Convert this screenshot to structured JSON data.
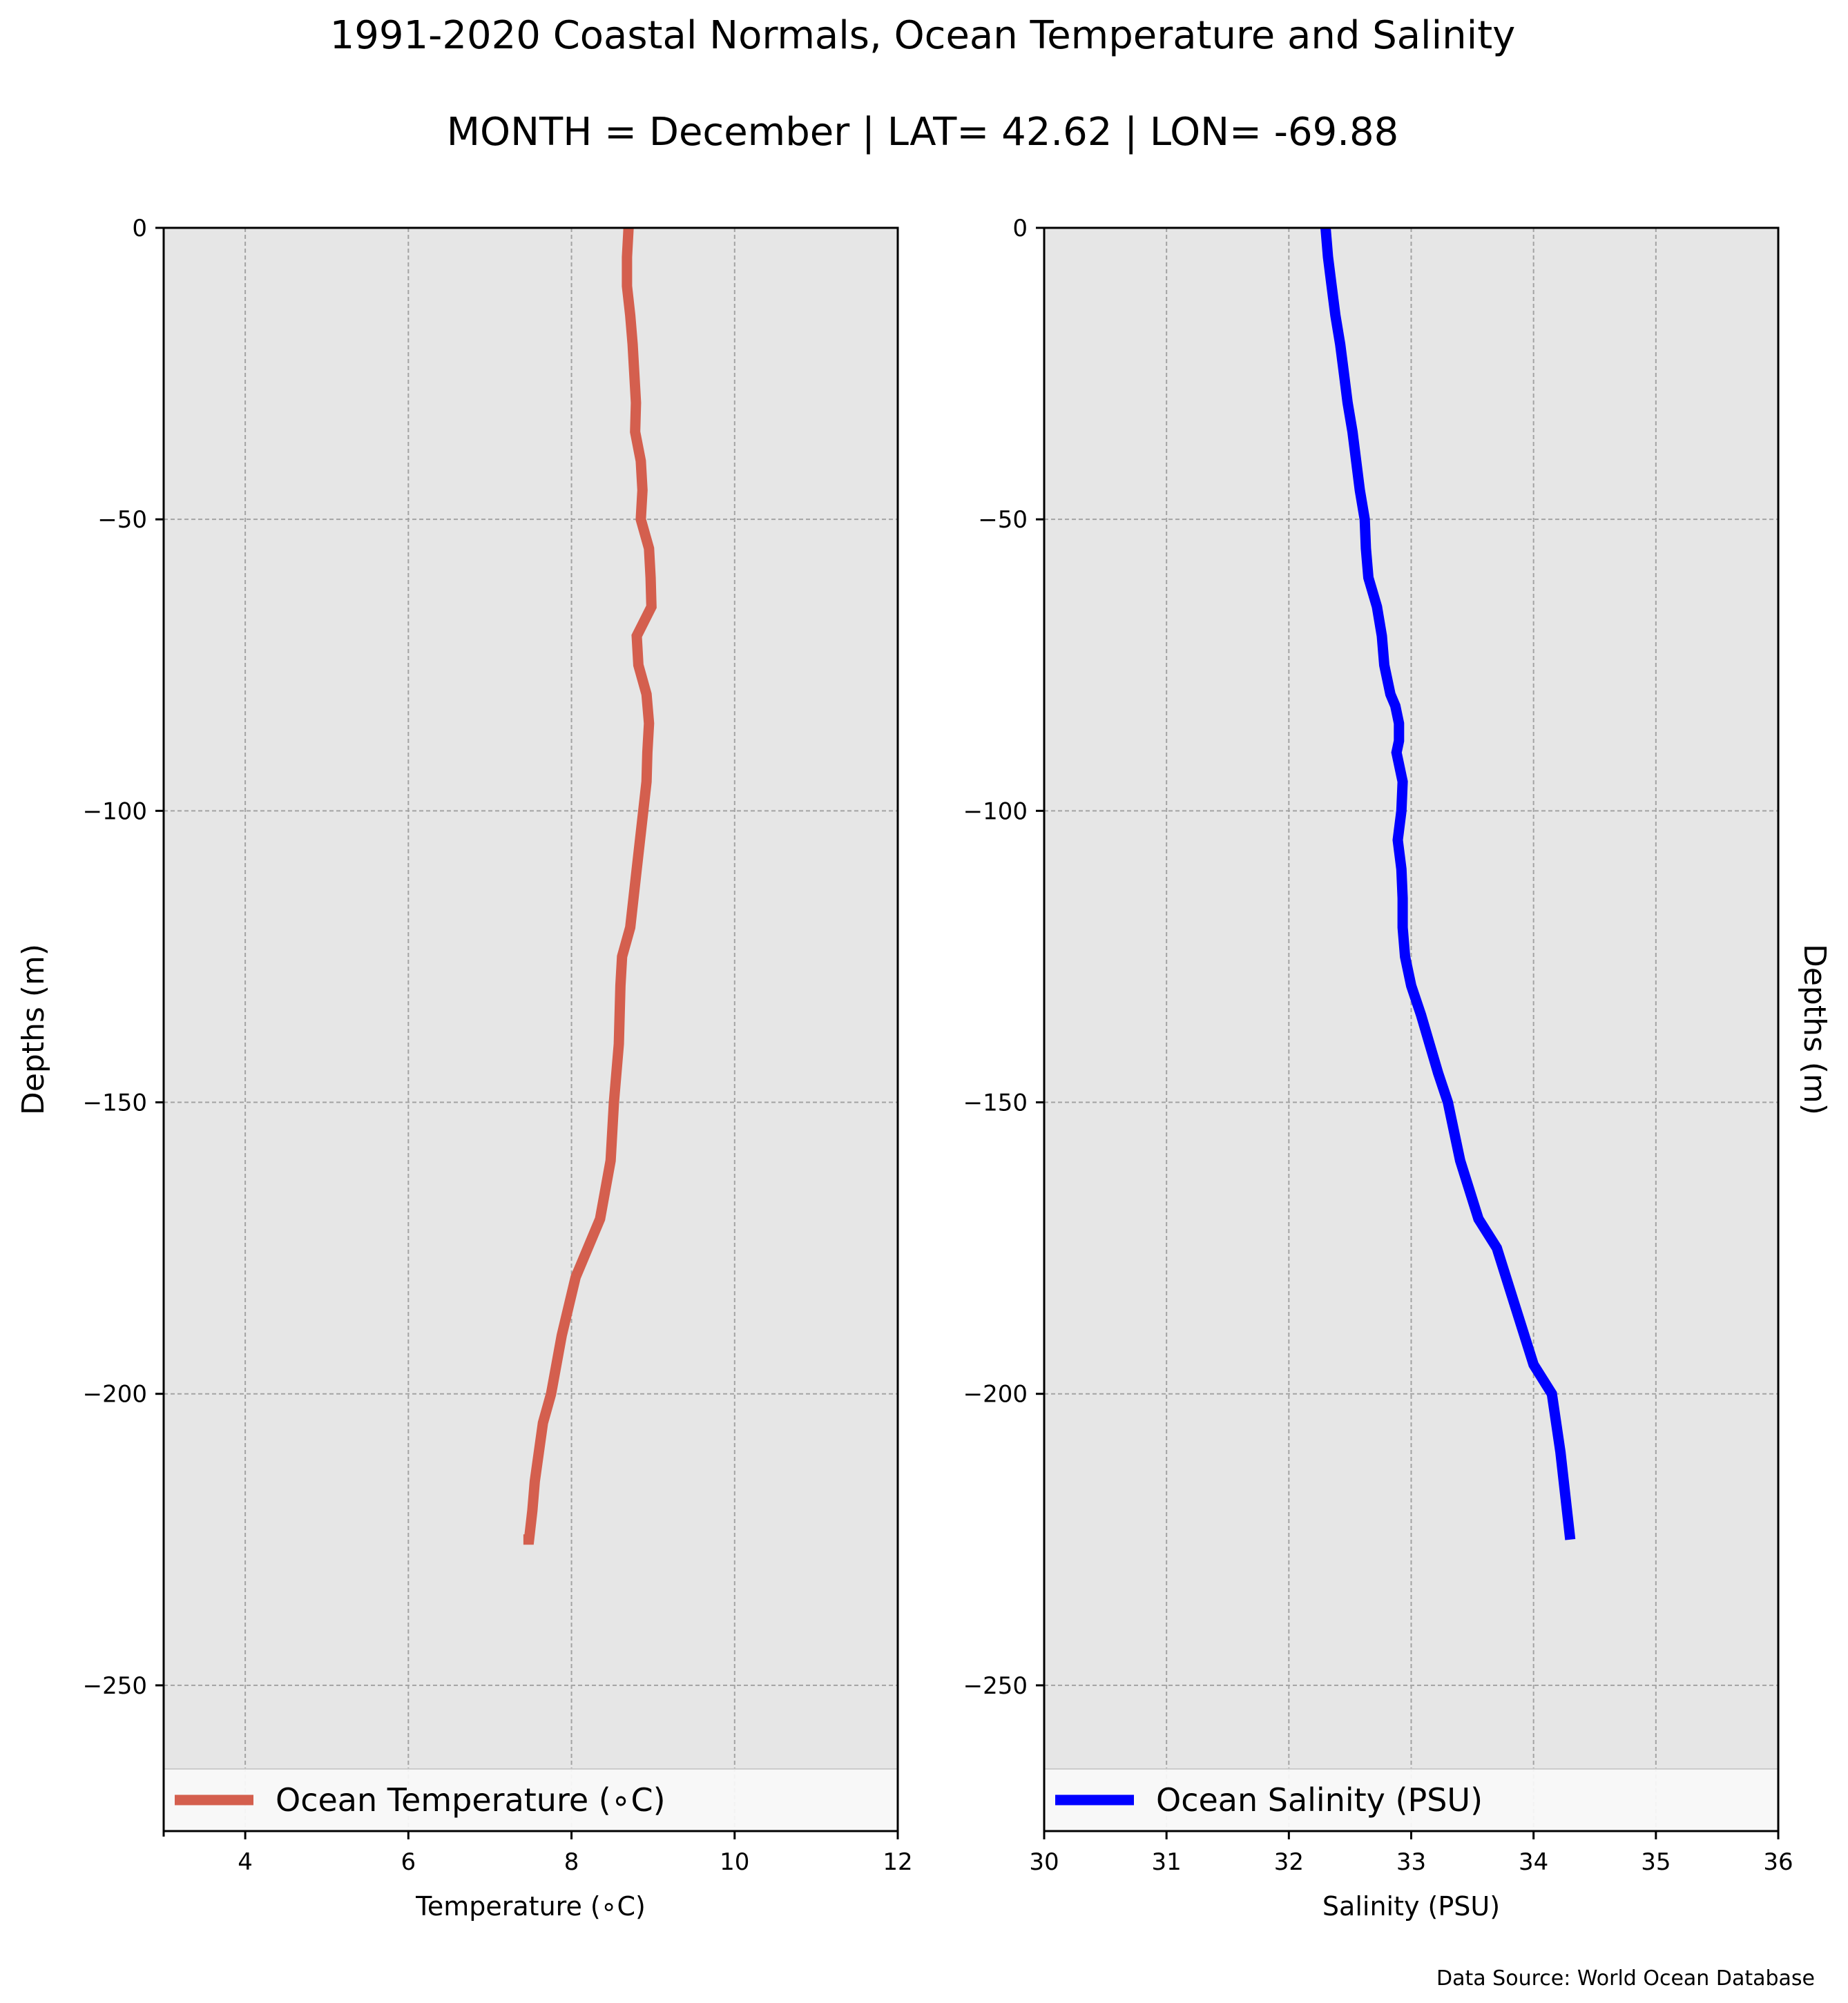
{
  "figure": {
    "title": "1991-2020 Coastal Normals, Ocean Temperature and Salinity",
    "subtitle": "MONTH = December | LAT= 42.62 | LON= -69.88",
    "source": "Data Source: World Ocean Database"
  },
  "chart_data": [
    {
      "type": "line",
      "orientation": "profile",
      "xlabel": "Temperature ($^\\circ$C)",
      "xlabel_display": "Temperature (∘C)",
      "ylabel": "Depths (m)",
      "xlim": [
        3,
        12
      ],
      "ylim": [
        -275,
        0
      ],
      "x_ticks": [
        4,
        6,
        8,
        10,
        12
      ],
      "y_ticks": [
        0,
        -50,
        -100,
        -150,
        -200,
        -250
      ],
      "y_tick_labels": [
        "0",
        "−50",
        "−100",
        "−150",
        "−200",
        "−250"
      ],
      "grid": true,
      "background": "#e6e6e6",
      "legend_position": "bottom",
      "series": [
        {
          "name": "Ocean Temperature (∘C)",
          "color": "#d45f4e",
          "x": [
            8.7,
            8.68,
            8.68,
            8.72,
            8.75,
            8.77,
            8.79,
            8.78,
            8.85,
            8.87,
            8.85,
            8.95,
            8.97,
            8.98,
            8.8,
            8.82,
            8.92,
            8.95,
            8.93,
            8.92,
            8.88,
            8.8,
            8.72,
            8.62,
            8.6,
            8.58,
            8.52,
            8.48,
            8.35,
            8.2,
            8.05,
            7.88,
            7.75,
            7.65,
            7.6,
            7.55,
            7.52,
            7.48,
            7.45,
            7.43,
            7.42,
            7.41,
            7.41
          ],
          "y": [
            0,
            -5,
            -10,
            -15,
            -20,
            -25,
            -30,
            -35,
            -40,
            -45,
            -50,
            -55,
            -60,
            -65,
            -70,
            -75,
            -80,
            -85,
            -90,
            -95,
            -100,
            -110,
            -120,
            -125,
            -130,
            -140,
            -150,
            -160,
            -170,
            -175,
            -180,
            -190,
            -200,
            -205,
            -210,
            -215,
            -220,
            -225,
            -225,
            -225,
            -225,
            -225,
            -225
          ]
        }
      ]
    },
    {
      "type": "line",
      "orientation": "profile",
      "xlabel": "Salinity (PSU)",
      "ylabel": "Depths (m)",
      "xlim": [
        30,
        36
      ],
      "ylim": [
        -275,
        0
      ],
      "x_ticks": [
        30,
        31,
        32,
        33,
        34,
        35,
        36
      ],
      "y_ticks": [
        0,
        -50,
        -100,
        -150,
        -200,
        -250
      ],
      "y_tick_labels": [
        "0",
        "−50",
        "−100",
        "−150",
        "−200",
        "−250"
      ],
      "grid": true,
      "background": "#e6e6e6",
      "legend_position": "bottom",
      "series": [
        {
          "name": "Ocean Salinity (PSU)",
          "color": "#0000ff",
          "x": [
            32.3,
            32.32,
            32.35,
            32.38,
            32.42,
            32.45,
            32.48,
            32.52,
            32.55,
            32.58,
            32.62,
            32.63,
            32.65,
            32.72,
            32.76,
            32.78,
            32.83,
            32.87,
            32.9,
            32.9,
            32.88,
            32.93,
            32.92,
            32.89,
            32.92,
            32.93,
            32.93,
            32.95,
            33.0,
            33.08,
            33.15,
            33.22,
            33.3,
            33.35,
            33.4,
            33.55,
            33.7,
            33.85,
            34.0,
            34.15,
            34.22,
            34.3
          ],
          "y": [
            0,
            -5,
            -10,
            -15,
            -20,
            -25,
            -30,
            -35,
            -40,
            -45,
            -50,
            -55,
            -60,
            -65,
            -70,
            -75,
            -80,
            -82,
            -85,
            -88,
            -90,
            -95,
            -100,
            -105,
            -110,
            -115,
            -120,
            -125,
            -130,
            -135,
            -140,
            -145,
            -150,
            -155,
            -160,
            -170,
            -175,
            -185,
            -195,
            -200,
            -210,
            -225
          ]
        }
      ]
    }
  ]
}
